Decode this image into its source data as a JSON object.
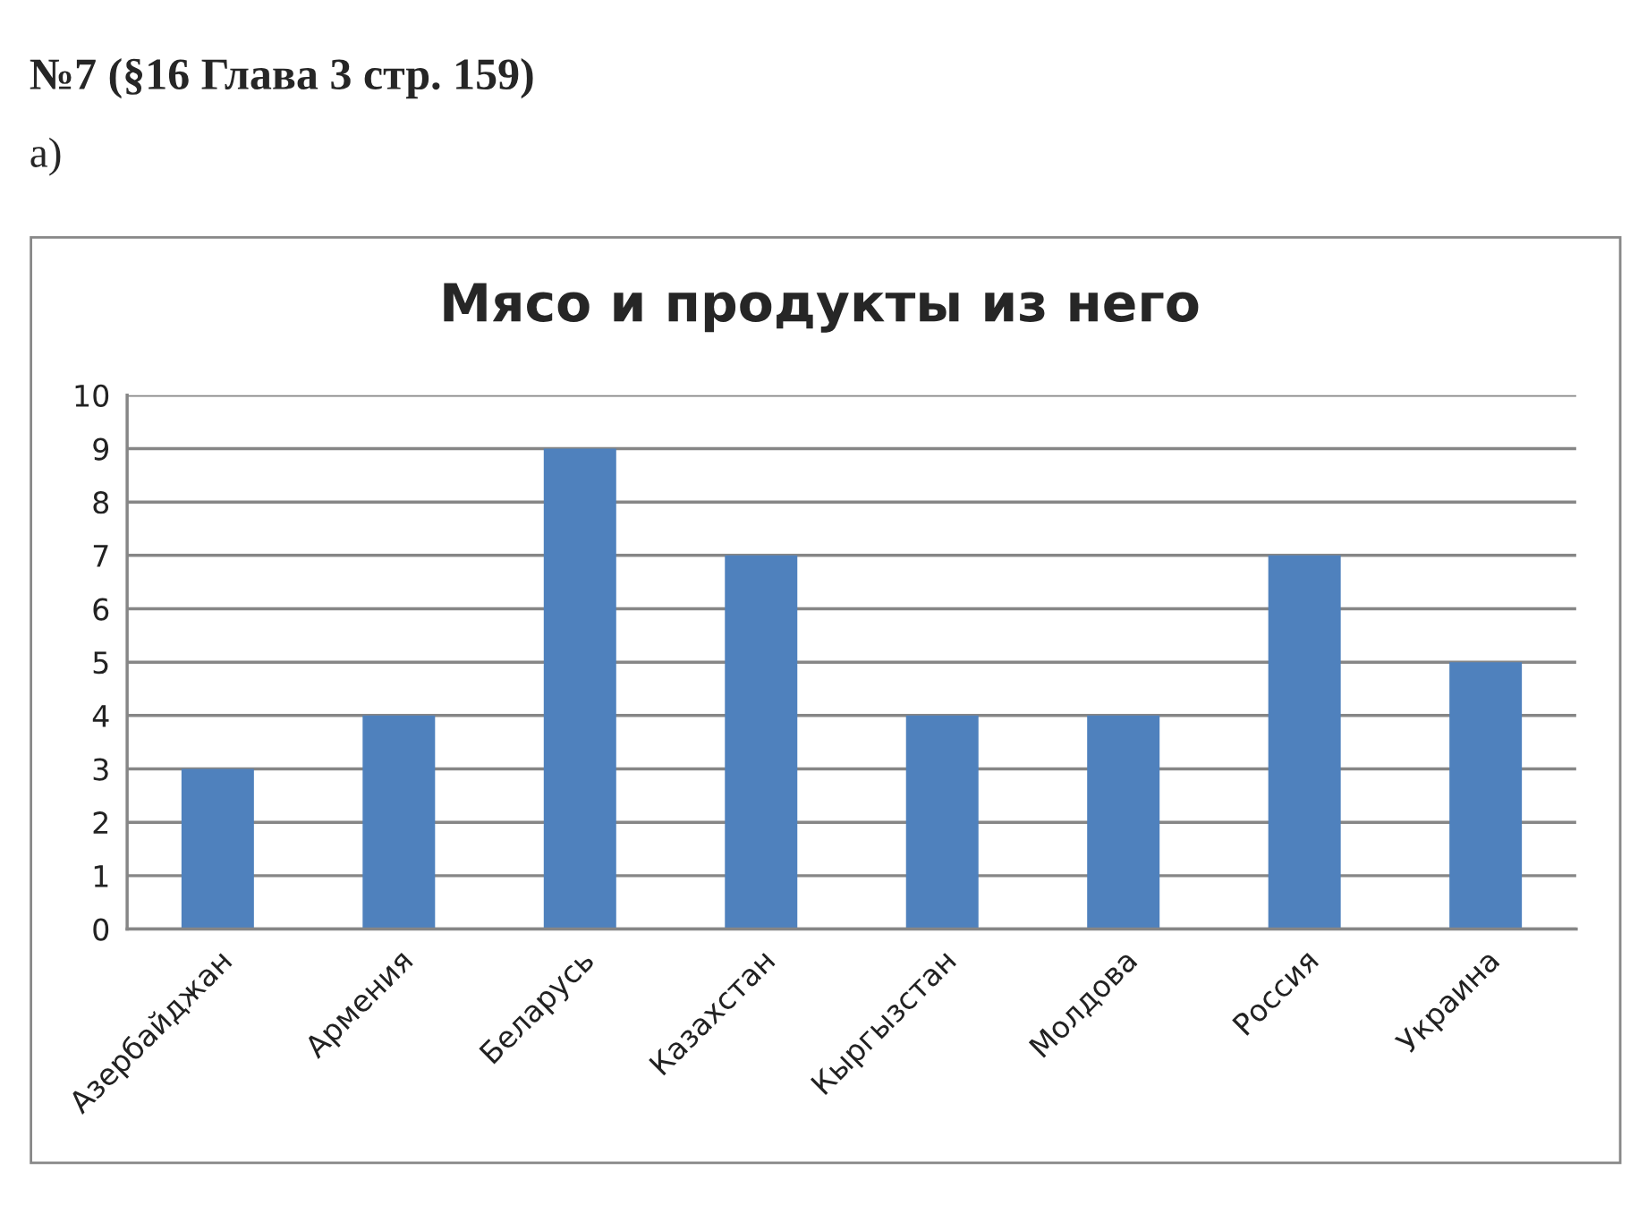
{
  "chart_data": {
    "type": "bar",
    "title": "Мясо и продукты из него",
    "annotations": [
      "№7 (§16 Глава 3 стр. 159)",
      "а)"
    ],
    "categories": [
      "Азербайджан",
      "Армения",
      "Беларусь",
      "Казахстан",
      "Кыргызстан",
      "Молдова",
      "Россия",
      "Украина"
    ],
    "values": [
      3,
      4,
      9,
      7,
      4,
      4,
      7,
      5
    ],
    "color": "#4f81bd",
    "ylim": [
      0,
      10
    ],
    "yticks": [
      0,
      1,
      2,
      3,
      4,
      5,
      6,
      7,
      8,
      9,
      10
    ],
    "grid": "y",
    "legend": false
  }
}
